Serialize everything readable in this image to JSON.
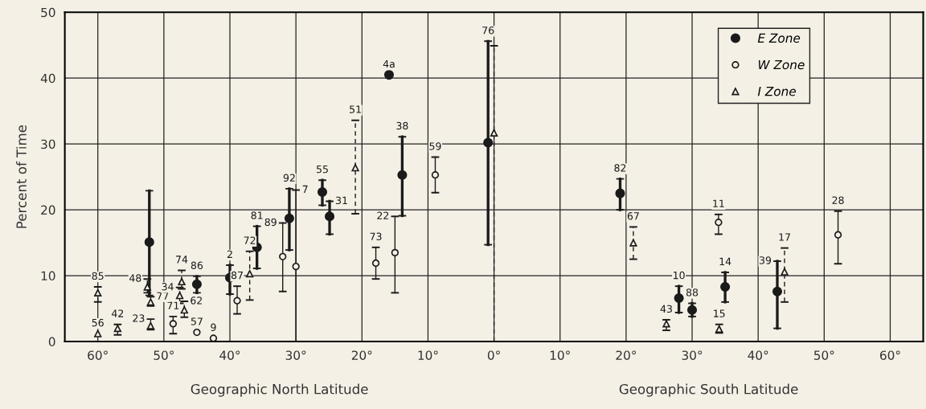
{
  "chart_data": {
    "type": "scatter",
    "ylabel": "Percent of Time",
    "annotations": [
      "Geographic North Latitude",
      "Geographic South Latitude",
      {
        "text": "86",
        "x": -45.0,
        "y": 9.9
      },
      {
        "text": "2",
        "x": -40.0,
        "y": 11.6
      },
      {
        "text": "81",
        "x": -35.9,
        "y": 17.5
      },
      {
        "text": "92",
        "x": -31.0,
        "y": 23.2
      },
      {
        "text": "55",
        "x": -26.0,
        "y": 24.5
      },
      {
        "text": "31",
        "x": -24.9,
        "y": 21.3
      },
      {
        "text": "4a",
        "x": -15.9,
        "y": 40.5
      },
      {
        "text": "38",
        "x": -13.9,
        "y": 31.1
      },
      {
        "text": "76",
        "x": -0.9,
        "y": 45.6
      },
      {
        "text": "82",
        "x": 19.1,
        "y": 24.7
      },
      {
        "text": "10",
        "x": 28.0,
        "y": 8.4
      },
      {
        "text": "88",
        "x": 30.0,
        "y": 5.8
      },
      {
        "text": "14",
        "x": 35.0,
        "y": 10.5
      },
      {
        "text": "39",
        "x": 42.9,
        "y": 12.2
      },
      {
        "text": "71",
        "x": -48.6,
        "y": 3.8
      },
      {
        "text": "57",
        "x": -45.0,
        "y": 1.4
      },
      {
        "text": "9",
        "x": -42.5,
        "y": 0.5
      },
      {
        "text": "87",
        "x": -38.9,
        "y": 8.4
      },
      {
        "text": "89",
        "x": -32.0,
        "y": 18.0
      },
      {
        "text": "7",
        "x": -30.0,
        "y": 23.0
      },
      {
        "text": "73",
        "x": -17.9,
        "y": 14.3
      },
      {
        "text": "22",
        "x": -15.0,
        "y": 19.0
      },
      {
        "text": "59",
        "x": -8.9,
        "y": 28.0
      },
      {
        "text": "11",
        "x": 34.0,
        "y": 19.3
      },
      {
        "text": "28",
        "x": 52.1,
        "y": 19.8
      },
      {
        "text": "85",
        "x": -60.0,
        "y": 8.3
      },
      {
        "text": "56",
        "x": -60.0,
        "y": 1.2
      },
      {
        "text": "42",
        "x": -57.0,
        "y": 2.6
      },
      {
        "text": "48",
        "x": -52.5,
        "y": 9.5
      },
      {
        "text": "77",
        "x": -52.0,
        "y": 6.8
      },
      {
        "text": "23",
        "x": -52.0,
        "y": 3.4
      },
      {
        "text": "74",
        "x": -47.3,
        "y": 10.8
      },
      {
        "text": "34",
        "x": -47.6,
        "y": 8.2
      },
      {
        "text": "62",
        "x": -46.9,
        "y": 6.1
      },
      {
        "text": "72",
        "x": -37.0,
        "y": 13.7
      },
      {
        "text": "51",
        "x": -21.0,
        "y": 33.6
      },
      {
        "text": "67",
        "x": 21.1,
        "y": 17.4
      },
      {
        "text": "43",
        "x": 26.1,
        "y": 3.3
      },
      {
        "text": "15",
        "x": 34.1,
        "y": 2.6
      },
      {
        "text": "17",
        "x": 44.0,
        "y": 14.2
      }
    ],
    "xlim": [
      -65,
      65
    ],
    "xticks": [
      {
        "value": -60,
        "label": "60°"
      },
      {
        "value": -50,
        "label": "50°"
      },
      {
        "value": -40,
        "label": "40°"
      },
      {
        "value": -30,
        "label": "30°"
      },
      {
        "value": -20,
        "label": "20°"
      },
      {
        "value": -10,
        "label": "10°"
      },
      {
        "value": 0,
        "label": "0°"
      },
      {
        "value": 10,
        "label": "10°"
      },
      {
        "value": 20,
        "label": "20°"
      },
      {
        "value": 30,
        "label": "30°"
      },
      {
        "value": 40,
        "label": "40°"
      },
      {
        "value": 50,
        "label": "50°"
      },
      {
        "value": 60,
        "label": "60°"
      }
    ],
    "ylim": [
      0,
      50
    ],
    "yticks": [
      0,
      10,
      20,
      30,
      40,
      50
    ],
    "grid": true,
    "legend": "top right",
    "series": [
      {
        "name": "E Zone",
        "color": "#1a1a1a",
        "marker": "circle",
        "line_style": "solid",
        "x": [
          -52.2,
          -45.0,
          -40.0,
          -35.9,
          -31.0,
          -26.0,
          -24.9,
          -15.9,
          -13.9,
          -0.9,
          19.1,
          28.0,
          30.0,
          35.0,
          42.9
        ],
        "values": [
          15.1,
          8.7,
          9.7,
          14.3,
          18.7,
          22.7,
          19.0,
          40.5,
          25.3,
          30.2,
          22.5,
          6.6,
          4.8,
          8.3,
          7.6
        ],
        "errors": [
          [
            7.0,
            22.9
          ],
          [
            7.4,
            9.9
          ],
          [
            7.2,
            11.6
          ],
          [
            11.1,
            17.5
          ],
          [
            13.9,
            23.2
          ],
          [
            20.7,
            24.5
          ],
          [
            16.3,
            21.3
          ],
          null,
          [
            19.1,
            31.1
          ],
          [
            14.7,
            45.6
          ],
          [
            20.0,
            24.7
          ],
          [
            4.4,
            8.4
          ],
          [
            3.8,
            5.8
          ],
          [
            6.0,
            10.5
          ],
          [
            2.0,
            12.2
          ]
        ]
      },
      {
        "name": "W Zone",
        "color": "#1a1a1a",
        "marker": "circle",
        "line_style": "solid",
        "x": [
          -48.6,
          -45.0,
          -42.5,
          -38.9,
          -32.0,
          -30.0,
          -17.9,
          -15.0,
          -8.9,
          34.0,
          52.1
        ],
        "values": [
          2.7,
          1.4,
          0.5,
          6.2,
          12.9,
          11.4,
          11.9,
          13.5,
          25.3,
          18.1,
          16.2
        ],
        "errors": [
          [
            1.2,
            3.8
          ],
          null,
          null,
          [
            4.2,
            8.4
          ],
          [
            7.6,
            18.0
          ],
          [
            0,
            23.0
          ],
          [
            9.5,
            14.3
          ],
          [
            7.4,
            19.0
          ],
          [
            22.6,
            28.0
          ],
          [
            16.3,
            19.3
          ],
          [
            11.8,
            19.8
          ]
        ]
      },
      {
        "name": "I Zone",
        "color": "#1a1a1a",
        "marker": "triangle",
        "line_style": "dashed",
        "x": [
          -60.0,
          -60.0,
          -57.0,
          -52.5,
          -52.0,
          -52.0,
          -47.3,
          -47.6,
          -46.9,
          -37.0,
          -21.0,
          0.0,
          21.1,
          26.1,
          34.1,
          44.0
        ],
        "values": [
          7.4,
          1.2,
          2.0,
          8.3,
          6.0,
          2.4,
          9.1,
          7.0,
          4.8,
          10.3,
          26.4,
          31.7,
          15.0,
          2.7,
          1.9,
          10.6
        ],
        "errors": [
          [
            6.0,
            8.3
          ],
          null,
          [
            1.0,
            2.6
          ],
          [
            7.4,
            9.5
          ],
          [
            5.4,
            6.8
          ],
          [
            1.8,
            3.4
          ],
          [
            8.0,
            10.8
          ],
          [
            5.8,
            8.2
          ],
          [
            3.7,
            6.1
          ],
          [
            6.3,
            13.7
          ],
          [
            19.4,
            33.6
          ],
          [
            0,
            44.9
          ],
          [
            12.5,
            17.4
          ],
          [
            1.7,
            3.3
          ],
          [
            1.3,
            2.6
          ],
          [
            6.0,
            14.2
          ]
        ]
      }
    ]
  }
}
